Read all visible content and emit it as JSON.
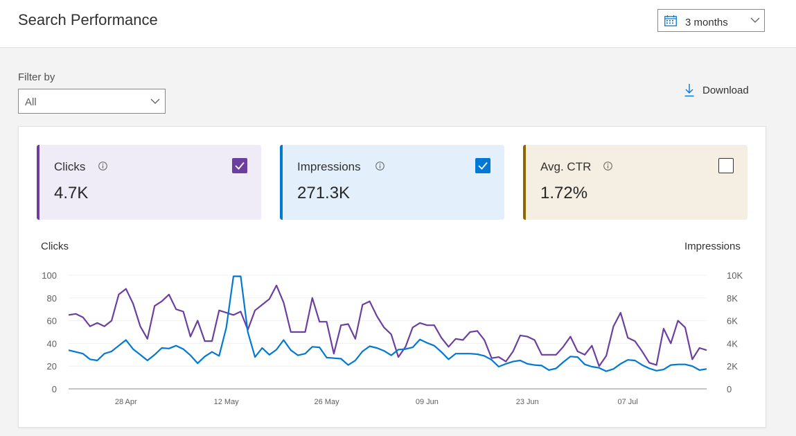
{
  "header": {
    "title": "Search Performance",
    "date_range": {
      "value": "3 months",
      "icon": "calendar-icon"
    }
  },
  "filter": {
    "label": "Filter by",
    "value": "All"
  },
  "download": {
    "label": "Download",
    "icon": "download-icon"
  },
  "metrics": [
    {
      "label": "Clicks",
      "value": "4.7K",
      "checked": true,
      "color": "#6b3fa0",
      "background": "#efebf7"
    },
    {
      "label": "Impressions",
      "value": "271.3K",
      "checked": true,
      "color": "#0078d4",
      "background": "#e3f0fb"
    },
    {
      "label": "Avg. CTR",
      "value": "1.72%",
      "checked": false,
      "color": "#8a6a00",
      "background": "#f4eee3"
    }
  ],
  "chart_data": {
    "type": "line",
    "y_left_label": "Clicks",
    "y_right_label": "Impressions",
    "y_left_ticks": [
      "0",
      "20",
      "40",
      "60",
      "80",
      "100"
    ],
    "y_right_ticks": [
      "0",
      "2K",
      "4K",
      "6K",
      "8K",
      "10K"
    ],
    "y_left_range": [
      0,
      100
    ],
    "y_right_range": [
      0,
      10000
    ],
    "x_tick_labels": [
      "28 Apr",
      "12 May",
      "26 May",
      "09 Jun",
      "23 Jun",
      "07 Jul"
    ],
    "grid": true,
    "series": [
      {
        "name": "Clicks",
        "axis": "left",
        "color": "#6b3fa0",
        "values": [
          65,
          66,
          63,
          55,
          58,
          55,
          60,
          83,
          88,
          75,
          55,
          44,
          73,
          77,
          83,
          70,
          68,
          46,
          60,
          42,
          42,
          69,
          67,
          65,
          68,
          52,
          69,
          74,
          79,
          91,
          76,
          50,
          50,
          50,
          80,
          59,
          59,
          31,
          56,
          57,
          44,
          74,
          77,
          64,
          54,
          48,
          28,
          37,
          54,
          58,
          56,
          56,
          45,
          37,
          44,
          43,
          50,
          51,
          43,
          27,
          28,
          24,
          33,
          47,
          46,
          43,
          30,
          30,
          30,
          37,
          46,
          33,
          30,
          38,
          20,
          29,
          55,
          67,
          45,
          42,
          33,
          23,
          21,
          53,
          40,
          60,
          54,
          26,
          36,
          34
        ]
      },
      {
        "name": "Impressions",
        "axis": "right",
        "color": "#0078d4",
        "values": [
          3400,
          3250,
          3100,
          2600,
          2500,
          3100,
          3300,
          3800,
          4300,
          3500,
          3000,
          2500,
          3000,
          3600,
          3550,
          3800,
          3500,
          2950,
          2250,
          2850,
          3250,
          2900,
          5400,
          9900,
          9900,
          5000,
          2800,
          3600,
          3000,
          3450,
          4300,
          3400,
          2950,
          3100,
          3700,
          3650,
          2750,
          2700,
          2650,
          2100,
          2500,
          3300,
          3750,
          3600,
          3350,
          2950,
          3450,
          3500,
          3650,
          4350,
          4050,
          3800,
          3250,
          2600,
          3100,
          3100,
          3100,
          3050,
          2900,
          2550,
          1950,
          2200,
          2400,
          2500,
          2200,
          2100,
          2050,
          1650,
          1800,
          2350,
          2850,
          2800,
          2150,
          1950,
          1850,
          1550,
          1750,
          2200,
          2550,
          2500,
          2100,
          1800,
          1600,
          1700,
          2100,
          2150,
          2150,
          2000,
          1650,
          1750
        ]
      }
    ]
  }
}
